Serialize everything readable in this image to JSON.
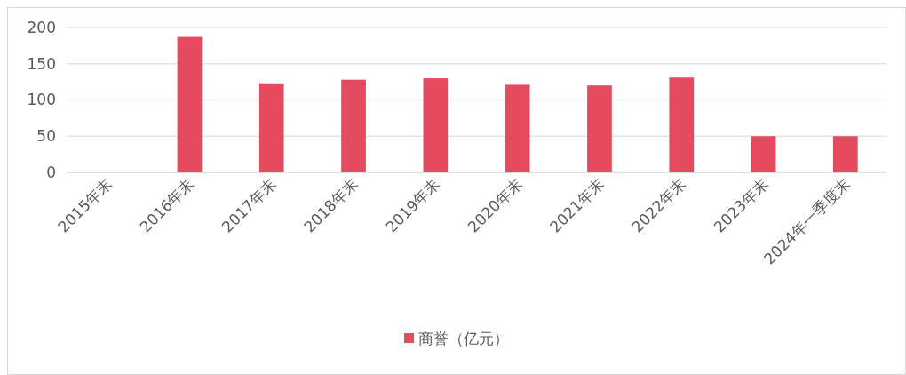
{
  "chart_data": {
    "type": "bar",
    "categories": [
      "2015年末",
      "2016年末",
      "2017年末",
      "2018年末",
      "2019年末",
      "2020年末",
      "2021年末",
      "2022年末",
      "2023年末",
      "2024年一季度末"
    ],
    "series": [
      {
        "name": "商誉（亿元）",
        "color": "#e54b5e",
        "values": [
          null,
          187,
          123,
          128,
          130,
          121,
          120,
          131,
          50,
          50
        ]
      }
    ],
    "ylim": [
      0,
      200
    ],
    "yticks": [
      0,
      50,
      100,
      150,
      200
    ],
    "grid": "y",
    "legend": "bottom"
  }
}
